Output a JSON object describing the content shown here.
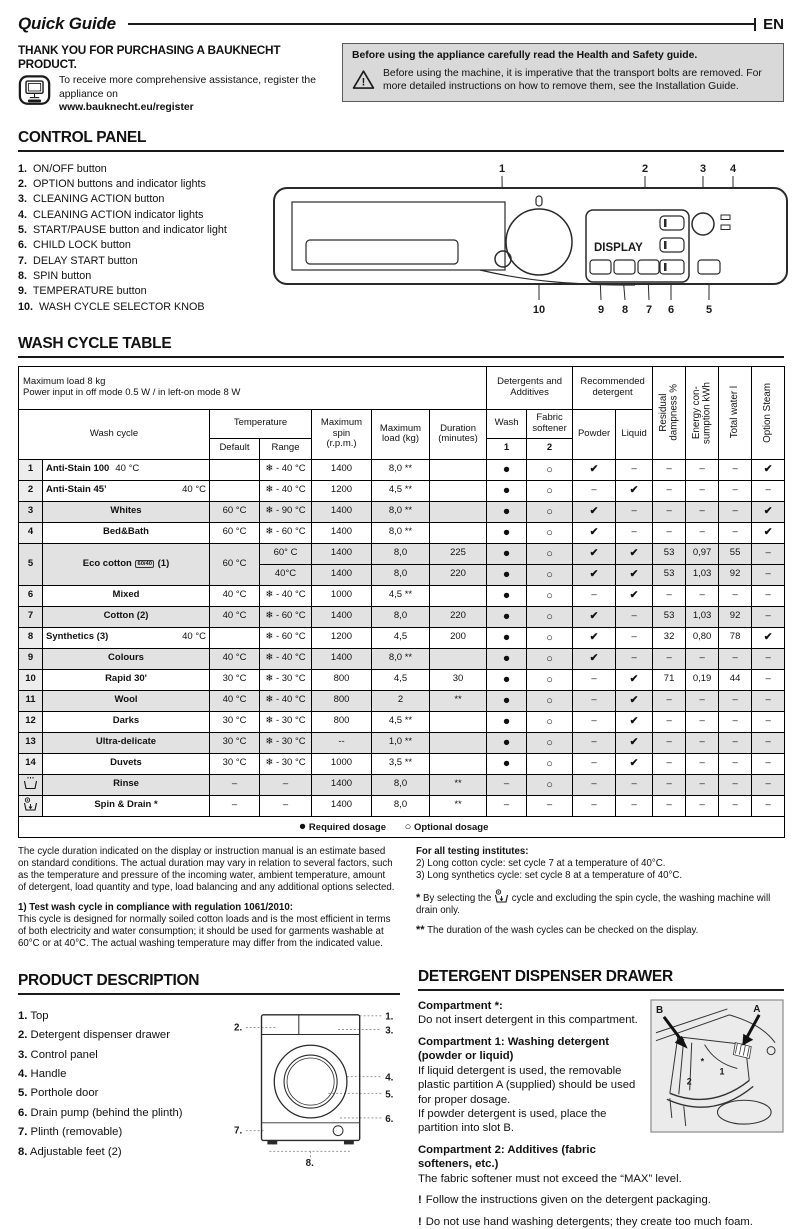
{
  "header": {
    "title": "Quick Guide",
    "lang": "EN"
  },
  "intro": {
    "thanks": "THANK YOU FOR PURCHASING A BAUKNECHT PRODUCT.",
    "register_line": "To receive more comprehensive assistance, register the appliance on",
    "register_url": "www.bauknecht.eu/register"
  },
  "safety_box": {
    "bold_line": "Before using the appliance carefully read the Health and Safety guide.",
    "warning_text": "Before using the machine, it is imperative that the transport bolts are removed. For more detailed instructions on how to remove them, see the Installation Guide."
  },
  "control_panel": {
    "heading": "CONTROL PANEL",
    "items": [
      {
        "num": "1.",
        "label": "ON/OFF button"
      },
      {
        "num": "2.",
        "label": "OPTION buttons and indicator lights"
      },
      {
        "num": "3.",
        "label": "CLEANING ACTION button"
      },
      {
        "num": "4.",
        "label": "CLEANING ACTION indicator lights"
      },
      {
        "num": "5.",
        "label": "START/PAUSE button and indicator light"
      },
      {
        "num": "6.",
        "label": "CHILD LOCK button"
      },
      {
        "num": "7.",
        "label": "DELAY START button"
      },
      {
        "num": "8.",
        "label": "SPIN button"
      },
      {
        "num": "9.",
        "label": "TEMPERATURE button"
      },
      {
        "num": "10.",
        "label": "WASH CYCLE SELECTOR KNOB"
      }
    ],
    "display_label": "DISPLAY",
    "callouts_top": [
      "1",
      "2",
      "3",
      "4"
    ],
    "callouts_bottom": [
      "10",
      "9",
      "8",
      "7",
      "6",
      "5"
    ]
  },
  "wash_table": {
    "heading": "WASH CYCLE TABLE",
    "header": {
      "max_load_line1": "Maximum load 8 kg",
      "max_load_line2": "Power input in off mode 0.5 W / in left-on mode 8 W",
      "wash_cycle": "Wash cycle",
      "temperature": "Temperature",
      "default_label": "Default",
      "range_label": "Range",
      "max_spin": "Maximum\nspin\n(r.p.m.)",
      "max_load": "Maximum\nload (kg)",
      "duration": "Duration\n(minutes)",
      "detergents": "Detergents and\nAdditives",
      "recommended": "Recommended\ndetergent",
      "wash": "Wash",
      "softener": "Fabric\nsoftener",
      "col1": "1",
      "col2": "2",
      "powder": "Powder",
      "liquid": "Liquid",
      "residual": "Residual\ndampness %",
      "energy": "Energy con-\nsumption kWh",
      "water": "Total water l",
      "steam": "Option Steam"
    },
    "rows": [
      {
        "num": "1",
        "name": "Anti-Stain 100",
        "temp": "40 °C",
        "tempgap": "near",
        "default": "",
        "range": "❄ - 40 °C",
        "spin": "1400",
        "load": "8,0 **",
        "dur": "",
        "dos": [
          "●",
          "○",
          "✔",
          "–",
          "–",
          "–",
          "–",
          "✔"
        ],
        "shaded": false
      },
      {
        "num": "2",
        "name": "Anti-Stain 45’",
        "temp": "40 °C",
        "tempgap": "far",
        "default": "",
        "range": "❄ - 40 °C",
        "spin": "1200",
        "load": "4,5 **",
        "dur": "",
        "dos": [
          "●",
          "○",
          "–",
          "✔",
          "–",
          "–",
          "–",
          "–"
        ],
        "shaded": false
      },
      {
        "num": "3",
        "name": "Whites",
        "default": "60 °C",
        "range": "❄ - 90 °C",
        "spin": "1400",
        "load": "8,0 **",
        "dur": "",
        "dos": [
          "●",
          "○",
          "✔",
          "–",
          "–",
          "–",
          "–",
          "✔"
        ],
        "shaded": true
      },
      {
        "num": "4",
        "name": "Bed&Bath",
        "default": "60 °C",
        "range": "❄ - 60 °C",
        "spin": "1400",
        "load": "8,0 **",
        "dur": "",
        "dos": [
          "●",
          "○",
          "✔",
          "–",
          "–",
          "–",
          "–",
          "✔"
        ],
        "shaded": false
      },
      {
        "num": "5",
        "name": "Eco cotton",
        "tag": "60/40",
        "suffix": "(1)",
        "default": "60 °C",
        "shaded": true,
        "sub": [
          {
            "range": "60° C",
            "spin": "1400",
            "load": "8,0",
            "dur": "225",
            "dos": [
              "●",
              "○",
              "✔",
              "✔",
              "53",
              "0,97",
              "55",
              "–"
            ]
          },
          {
            "range": "40°C",
            "spin": "1400",
            "load": "8,0",
            "dur": "220",
            "dos": [
              "●",
              "○",
              "✔",
              "✔",
              "53",
              "1,03",
              "92",
              "–"
            ]
          }
        ]
      },
      {
        "num": "6",
        "name": "Mixed",
        "default": "40 °C",
        "range": "❄ - 40 °C",
        "spin": "1000",
        "load": "4,5 **",
        "dur": "",
        "dos": [
          "●",
          "○",
          "–",
          "✔",
          "–",
          "–",
          "–",
          "–"
        ],
        "shaded": false
      },
      {
        "num": "7",
        "name": "Cotton (2)",
        "default": "40 °C",
        "range": "❄ - 60 °C",
        "spin": "1400",
        "load": "8,0",
        "dur": "220",
        "dos": [
          "●",
          "○",
          "✔",
          "–",
          "53",
          "1,03",
          "92",
          "–"
        ],
        "shaded": true
      },
      {
        "num": "8",
        "name": "Synthetics (3)",
        "temp": "40 °C",
        "tempgap": "far",
        "default": "",
        "range": "❄ - 60 °C",
        "spin": "1200",
        "load": "4,5",
        "dur": "200",
        "dos": [
          "●",
          "○",
          "✔",
          "–",
          "32",
          "0,80",
          "78",
          "✔"
        ],
        "shaded": false
      },
      {
        "num": "9",
        "name": "Colours",
        "default": "40 °C",
        "range": "❄ - 40 °C",
        "spin": "1400",
        "load": "8,0 **",
        "dur": "",
        "dos": [
          "●",
          "○",
          "✔",
          "–",
          "–",
          "–",
          "–",
          "–"
        ],
        "shaded": true
      },
      {
        "num": "10",
        "name": "Rapid 30'",
        "default": "30 °C",
        "range": "❄ - 30 °C",
        "spin": "800",
        "load": "4,5",
        "dur": "30",
        "dos": [
          "●",
          "○",
          "–",
          "✔",
          "71",
          "0,19",
          "44",
          "–"
        ],
        "shaded": false
      },
      {
        "num": "11",
        "name": "Wool",
        "default": "40 °C",
        "range": "❄ - 40 °C",
        "spin": "800",
        "load": "2",
        "dur": "**",
        "dos": [
          "●",
          "○",
          "–",
          "✔",
          "–",
          "–",
          "–",
          "–"
        ],
        "shaded": true
      },
      {
        "num": "12",
        "name": "Darks",
        "default": "30 °C",
        "range": "❄ - 30 °C",
        "spin": "800",
        "load": "4,5 **",
        "dur": "",
        "dos": [
          "●",
          "○",
          "–",
          "✔",
          "–",
          "–",
          "–",
          "–"
        ],
        "shaded": false
      },
      {
        "num": "13",
        "name": "Ultra-delicate",
        "default": "30 °C",
        "range": "❄ - 30 °C",
        "spin": "--",
        "load": "1,0 **",
        "dur": "",
        "dos": [
          "●",
          "○",
          "–",
          "✔",
          "–",
          "–",
          "–",
          "–"
        ],
        "shaded": true
      },
      {
        "num": "14",
        "name": "Duvets",
        "default": "30 °C",
        "range": "❄ - 30 °C",
        "spin": "1000",
        "load": "3,5 **",
        "dur": "",
        "dos": [
          "●",
          "○",
          "–",
          "✔",
          "–",
          "–",
          "–",
          "–"
        ],
        "shaded": false
      },
      {
        "icon": "rinse-icon",
        "name": "Rinse",
        "default": "–",
        "range": "–",
        "spin": "1400",
        "load": "8,0",
        "dur": "**",
        "dos": [
          "–",
          "○",
          "–",
          "–",
          "–",
          "–",
          "–",
          "–"
        ],
        "shaded": true
      },
      {
        "icon": "spin-drain-icon",
        "name": "Spin & Drain *",
        "default": "–",
        "range": "–",
        "spin": "1400",
        "load": "8,0",
        "dur": "**",
        "dos": [
          "–",
          "–",
          "–",
          "–",
          "–",
          "–",
          "–",
          "–"
        ],
        "shaded": false
      }
    ],
    "legend": {
      "req_sym": "●",
      "required": "Required dosage",
      "opt_sym": "○",
      "optional": "Optional dosage"
    }
  },
  "notes": {
    "left_para": "The cycle duration indicated on the display or instruction manual is an estimate based on standard conditions. The actual duration may vary in relation to several factors, such as the temperature and pressure of the incoming water, ambient temperature, amount of detergent, load quantity and type, load balancing and any additional options selected.",
    "test_title": "1) Test wash cycle in compliance with regulation 1061/2010:",
    "test_body": "This cycle is designed for normally soiled cotton loads and is the most efficient in terms of both electricity and water consumption; it should be used for garments washable at 60°C or at 40°C. The actual washing temperature may differ from the indicated value.",
    "right_title": "For all testing institutes:",
    "note2": "2) Long cotton cycle: set cycle 7 at a temperature of 40°C.",
    "note3": "3) Long synthetics cycle: set cycle 8 at a temperature of 40°C.",
    "star_mark": "*",
    "star_pre": "By selecting the",
    "star_post": "cycle and excluding the spin cycle, the washing machine will drain only.",
    "dstar_mark": "**",
    "dstar_text": "The duration of the wash cycles can be checked on the display."
  },
  "product": {
    "heading": "PRODUCT DESCRIPTION",
    "items": [
      {
        "num": "1.",
        "label": "Top"
      },
      {
        "num": "2.",
        "label": "Detergent dispenser drawer"
      },
      {
        "num": "3.",
        "label": "Control panel"
      },
      {
        "num": "4.",
        "label": "Handle"
      },
      {
        "num": "5.",
        "label": "Porthole door"
      },
      {
        "num": "6.",
        "label": "Drain pump (behind the plinth)"
      },
      {
        "num": "7.",
        "label": "Plinth (removable)"
      },
      {
        "num": "8.",
        "label": "Adjustable feet (2)"
      }
    ],
    "callouts": {
      "left_top": "2.",
      "left_bottom": "7.",
      "right": [
        "1.",
        "3.",
        "4.",
        "5.",
        "6."
      ],
      "bottom": "8."
    }
  },
  "dispenser": {
    "heading": "DETERGENT DISPENSER DRAWER",
    "sections": [
      {
        "title": "Compartment *:",
        "body": "Do not insert detergent in this compartment."
      },
      {
        "title": "Compartment 1: Washing detergent (powder or liquid)",
        "body": "If liquid detergent is used, the removable plastic partition A (supplied) should be used for proper dosage.\nIf powder detergent is used, place the partition into slot B."
      },
      {
        "title": "Compartment 2: Additives (fabric softeners, etc.)",
        "body": "The fabric softener must not exceed the “MAX” level."
      }
    ],
    "warnings": [
      {
        "mark": "!",
        "text": "Follow the instructions given on the detergent packaging."
      },
      {
        "mark": "!",
        "text": "Do not use hand washing detergents; they create too much foam."
      }
    ],
    "diagram": {
      "a": "A",
      "b": "B",
      "n1": "1",
      "n2": "2",
      "star": "*"
    }
  }
}
